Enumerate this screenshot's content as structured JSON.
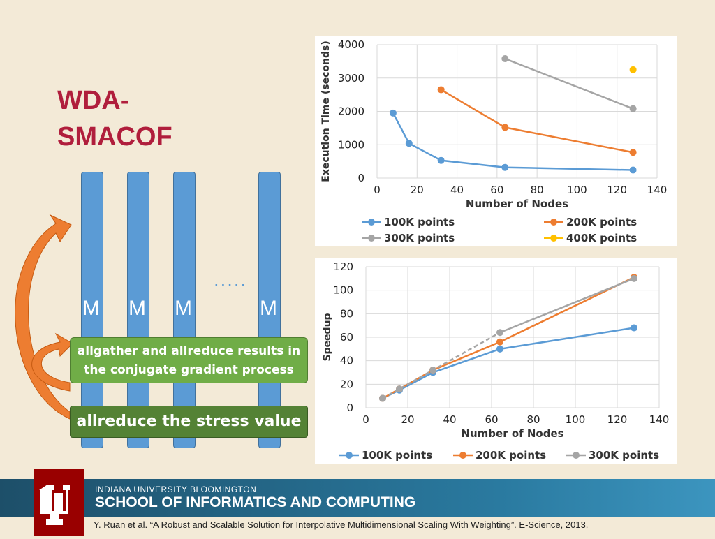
{
  "title_line1": "WDA-",
  "title_line2": "SMACOF",
  "diagram": {
    "m_label": "M",
    "dots": ".....",
    "box1_line1": "allgather and allreduce results in",
    "box1_line2": "the conjugate gradient process",
    "box2": "allreduce the stress value"
  },
  "colors": {
    "blue": "#5b9bd5",
    "orange": "#ed7d31",
    "gray": "#a5a5a5",
    "yellow": "#ffc000",
    "crimson": "#990000"
  },
  "chart_data": [
    {
      "type": "line",
      "ylabel": "Execution Time (seconds)",
      "xlabel": "Number of Nodes",
      "xlim": [
        0,
        140
      ],
      "ylim": [
        0,
        4000
      ],
      "xticks": [
        "0",
        "20",
        "40",
        "60",
        "80",
        "100",
        "120",
        "140"
      ],
      "yticks": [
        "0",
        "1000",
        "2000",
        "3000",
        "4000"
      ],
      "series": [
        {
          "name": "100K points",
          "x": [
            8,
            16,
            32,
            64,
            128
          ],
          "y": [
            1950,
            1040,
            530,
            320,
            240
          ]
        },
        {
          "name": "200K points",
          "x": [
            32,
            64,
            128
          ],
          "y": [
            2650,
            1520,
            770
          ]
        },
        {
          "name": "300K points",
          "x": [
            64,
            128
          ],
          "y": [
            3580,
            2080
          ]
        },
        {
          "name": "400K points",
          "x": [
            128
          ],
          "y": [
            3250
          ]
        }
      ]
    },
    {
      "type": "line",
      "ylabel": "Speedup",
      "xlabel": "Number of Nodes",
      "xlim": [
        0,
        140
      ],
      "ylim": [
        0,
        120
      ],
      "xticks": [
        "0",
        "20",
        "40",
        "60",
        "80",
        "100",
        "120",
        "140"
      ],
      "yticks": [
        "0",
        "20",
        "40",
        "60",
        "80",
        "100",
        "120"
      ],
      "series": [
        {
          "name": "100K points",
          "x": [
            8,
            16,
            32,
            64,
            128
          ],
          "y": [
            8,
            15,
            30,
            50,
            68
          ]
        },
        {
          "name": "200K points",
          "x": [
            8,
            16,
            32,
            64,
            128
          ],
          "y": [
            8,
            16,
            32,
            56,
            111
          ]
        },
        {
          "name": "300K points",
          "x": [
            8,
            16,
            32,
            64,
            128
          ],
          "y": [
            8,
            16,
            32,
            64,
            110
          ]
        }
      ]
    }
  ],
  "footer": {
    "university": "INDIANA UNIVERSITY BLOOMINGTON",
    "school": "SCHOOL OF INFORMATICS AND COMPUTING",
    "citation": "Y. Ruan et al. “A Robust and Scalable Solution for Interpolative Multidimensional Scaling With Weighting”. E-Science, 2013."
  }
}
